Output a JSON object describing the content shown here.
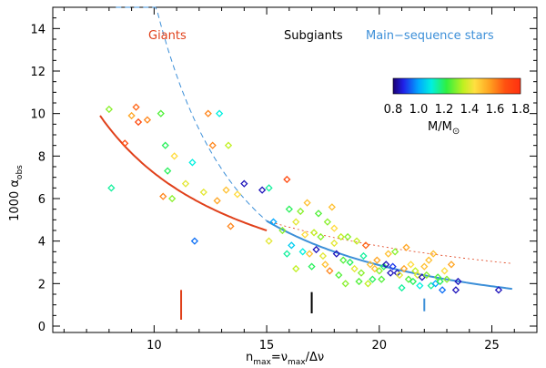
{
  "chart_data": {
    "type": "scatter",
    "xlabel_main": "n",
    "xlabel_sub": "max",
    "xlabel_rest": "=ν",
    "xlabel_sub2": "max",
    "xlabel_tail": "/Δν",
    "ylabel_main": "1000 α",
    "ylabel_sub": "obs",
    "xlim": [
      5.5,
      27
    ],
    "ylim": [
      -0.3,
      15
    ],
    "xticks": [
      10,
      15,
      20,
      25
    ],
    "yticks": [
      0,
      2,
      4,
      6,
      8,
      10,
      12,
      14
    ],
    "labels": {
      "giants": "Giants",
      "subgiants": "Subgiants",
      "ms": "Main−sequence stars"
    },
    "colors": {
      "giants": "#e0401a",
      "subgiants": "#000000",
      "ms": "#3c8fd8"
    },
    "colorbar": {
      "ticks": [
        "0.8",
        "1.0",
        "1.2",
        "1.4",
        "1.6",
        "1.8"
      ],
      "label_main": "M/M",
      "label_sub": "⊙",
      "min": 0.8,
      "max": 1.8
    },
    "markers": [
      {
        "x": 11.2,
        "y0": 0.3,
        "y1": 1.7,
        "color": "#e0401a"
      },
      {
        "x": 17.0,
        "y0": 0.6,
        "y1": 1.6,
        "color": "#000000"
      },
      {
        "x": 22.0,
        "y0": 0.7,
        "y1": 1.3,
        "color": "#3c8fd8"
      }
    ],
    "fits": {
      "giants": {
        "x_from": 7.6,
        "x_to": 15.0
      },
      "ms": {
        "x_from": 15.0,
        "x_to": 25.9
      },
      "ms_extrap": {
        "x_from": 8.3,
        "x_to": 15.0
      },
      "giants_extrap": {
        "x_from": 15.0,
        "x_to": 25.9
      }
    },
    "points": [
      [
        8.0,
        10.2,
        1.3
      ],
      [
        8.1,
        6.5,
        1.15
      ],
      [
        8.7,
        8.6,
        1.7
      ],
      [
        9.0,
        9.9,
        1.55
      ],
      [
        9.2,
        10.3,
        1.65
      ],
      [
        9.3,
        9.6,
        1.7
      ],
      [
        9.7,
        9.7,
        1.6
      ],
      [
        10.3,
        10.0,
        1.25
      ],
      [
        10.5,
        8.5,
        1.2
      ],
      [
        10.6,
        7.3,
        1.2
      ],
      [
        10.4,
        6.1,
        1.6
      ],
      [
        10.8,
        6.0,
        1.3
      ],
      [
        10.9,
        8.0,
        1.45
      ],
      [
        11.4,
        6.7,
        1.4
      ],
      [
        11.7,
        7.7,
        1.1
      ],
      [
        11.8,
        4.0,
        0.95
      ],
      [
        12.2,
        6.3,
        1.4
      ],
      [
        12.4,
        10.0,
        1.6
      ],
      [
        12.6,
        8.5,
        1.6
      ],
      [
        12.8,
        5.9,
        1.55
      ],
      [
        12.9,
        10.0,
        1.1
      ],
      [
        13.2,
        6.4,
        1.5
      ],
      [
        13.4,
        4.7,
        1.6
      ],
      [
        13.3,
        8.5,
        1.35
      ],
      [
        13.7,
        6.2,
        1.45
      ],
      [
        14.0,
        6.7,
        0.85
      ],
      [
        14.8,
        6.4,
        0.85
      ],
      [
        15.1,
        6.5,
        1.15
      ],
      [
        15.1,
        4.0,
        1.4
      ],
      [
        15.3,
        4.9,
        1.0
      ],
      [
        15.7,
        4.5,
        1.3
      ],
      [
        15.9,
        6.9,
        1.7
      ],
      [
        15.9,
        3.4,
        1.15
      ],
      [
        16.0,
        5.5,
        1.2
      ],
      [
        16.1,
        3.8,
        1.05
      ],
      [
        16.3,
        2.7,
        1.35
      ],
      [
        16.3,
        4.9,
        1.4
      ],
      [
        16.5,
        5.4,
        1.3
      ],
      [
        16.6,
        3.5,
        1.1
      ],
      [
        16.7,
        4.3,
        1.45
      ],
      [
        16.8,
        5.8,
        1.5
      ],
      [
        16.9,
        3.4,
        1.5
      ],
      [
        17.0,
        2.8,
        1.2
      ],
      [
        17.1,
        4.4,
        1.35
      ],
      [
        17.2,
        3.6,
        0.85
      ],
      [
        17.3,
        5.3,
        1.25
      ],
      [
        17.4,
        4.2,
        1.3
      ],
      [
        17.5,
        3.3,
        1.4
      ],
      [
        17.6,
        2.9,
        1.5
      ],
      [
        17.7,
        4.9,
        1.3
      ],
      [
        17.8,
        2.6,
        1.6
      ],
      [
        17.9,
        5.6,
        1.5
      ],
      [
        18.0,
        4.6,
        1.45
      ],
      [
        18.0,
        3.9,
        1.4
      ],
      [
        18.1,
        3.4,
        0.85
      ],
      [
        18.2,
        2.4,
        1.25
      ],
      [
        18.3,
        4.2,
        1.35
      ],
      [
        18.4,
        3.1,
        1.25
      ],
      [
        18.5,
        2.0,
        1.3
      ],
      [
        18.6,
        4.2,
        1.3
      ],
      [
        18.7,
        3.0,
        1.2
      ],
      [
        18.9,
        2.7,
        1.4
      ],
      [
        19.0,
        4.0,
        1.35
      ],
      [
        19.1,
        2.1,
        1.25
      ],
      [
        19.2,
        2.5,
        1.3
      ],
      [
        19.3,
        3.3,
        1.15
      ],
      [
        19.4,
        3.8,
        1.65
      ],
      [
        19.5,
        2.0,
        1.35
      ],
      [
        19.6,
        2.9,
        1.5
      ],
      [
        19.7,
        2.2,
        1.2
      ],
      [
        19.8,
        2.7,
        1.5
      ],
      [
        19.9,
        3.1,
        1.55
      ],
      [
        20.0,
        2.6,
        1.3
      ],
      [
        20.1,
        2.2,
        1.25
      ],
      [
        20.2,
        2.8,
        1.2
      ],
      [
        20.3,
        2.9,
        0.85
      ],
      [
        20.4,
        3.4,
        1.5
      ],
      [
        20.5,
        2.5,
        0.85
      ],
      [
        20.6,
        2.8,
        0.9
      ],
      [
        20.7,
        3.5,
        1.3
      ],
      [
        20.8,
        2.5,
        0.85
      ],
      [
        20.9,
        2.4,
        1.4
      ],
      [
        21.0,
        1.8,
        1.15
      ],
      [
        21.1,
        2.7,
        1.55
      ],
      [
        21.2,
        3.7,
        1.55
      ],
      [
        21.3,
        2.2,
        1.25
      ],
      [
        21.4,
        2.9,
        1.45
      ],
      [
        21.5,
        2.1,
        1.2
      ],
      [
        21.6,
        2.6,
        1.35
      ],
      [
        21.7,
        2.4,
        1.4
      ],
      [
        21.8,
        1.9,
        1.1
      ],
      [
        21.9,
        2.3,
        0.85
      ],
      [
        22.0,
        2.8,
        1.5
      ],
      [
        22.1,
        2.4,
        1.3
      ],
      [
        22.2,
        3.1,
        1.5
      ],
      [
        22.3,
        1.9,
        1.15
      ],
      [
        22.4,
        3.4,
        1.5
      ],
      [
        22.5,
        2.0,
        1.0
      ],
      [
        22.6,
        2.3,
        1.25
      ],
      [
        22.7,
        2.1,
        1.2
      ],
      [
        22.8,
        1.7,
        0.95
      ],
      [
        22.9,
        2.6,
        1.45
      ],
      [
        23.0,
        2.2,
        1.3
      ],
      [
        23.2,
        2.9,
        1.55
      ],
      [
        23.4,
        1.7,
        0.85
      ],
      [
        23.5,
        2.1,
        0.85
      ],
      [
        25.3,
        1.7,
        0.85
      ]
    ]
  }
}
